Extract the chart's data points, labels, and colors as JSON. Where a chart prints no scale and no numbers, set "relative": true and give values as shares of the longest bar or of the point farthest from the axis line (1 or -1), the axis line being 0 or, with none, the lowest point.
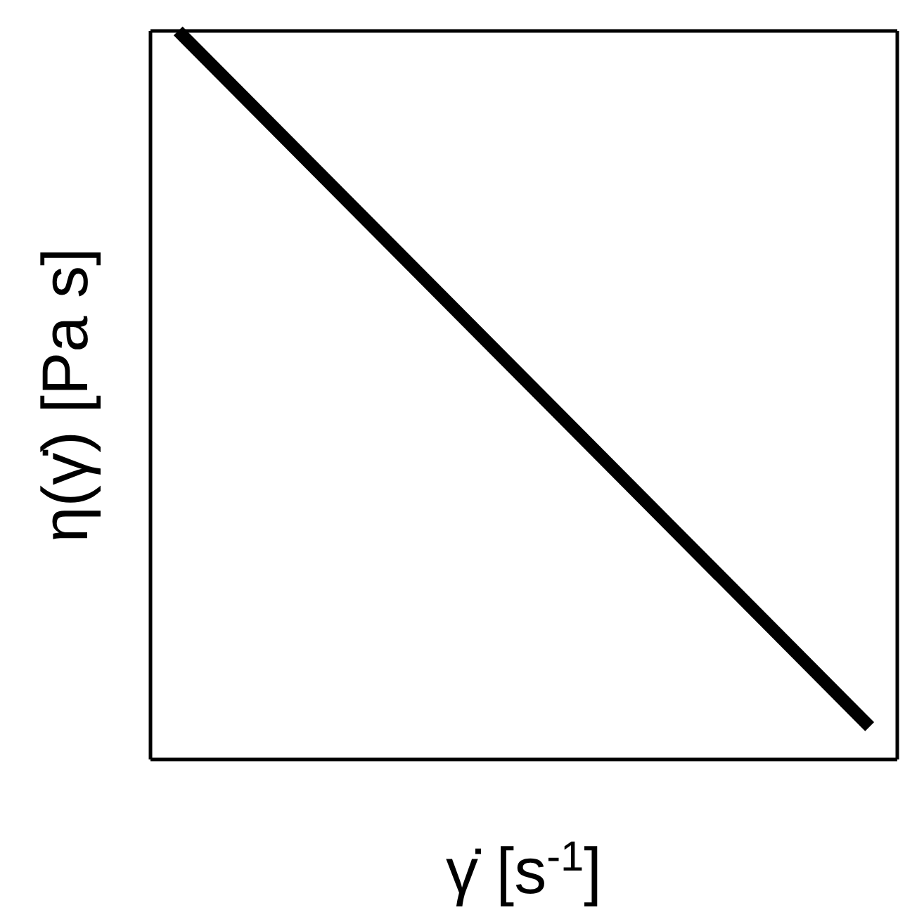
{
  "chart_data": {
    "type": "line",
    "relative": true,
    "xlabel": "γ̇ [s$^{-1}$]",
    "ylabel": "η(γ̇) [Pa s]",
    "categories": [
      null,
      null
    ],
    "series": [
      {
        "color": "#000000",
        "values": [
          1,
          0.045
        ]
      }
    ]
  }
}
